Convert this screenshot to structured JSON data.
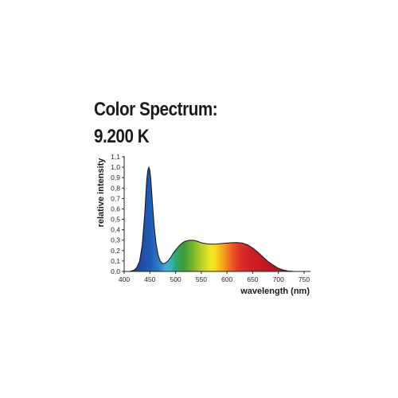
{
  "title": "Color Spectrum:",
  "subtitle": "9.200 K",
  "chart_data": {
    "type": "area",
    "xlabel": "wavelength  (nm)",
    "ylabel": "relative intensity",
    "xlim": [
      400,
      750
    ],
    "ylim": [
      0,
      1.1
    ],
    "x_ticks": [
      "400",
      "450",
      "500",
      "550",
      "600",
      "650",
      "700",
      "750"
    ],
    "y_ticks": [
      "0,0",
      "0,1",
      "0,2",
      "0,3",
      "0,4",
      "0,5",
      "0,6",
      "0,7",
      "0,8",
      "0,9",
      "1,0",
      "1,1"
    ],
    "grid": false,
    "fill": "visible spectrum gradient",
    "series": [
      {
        "x": [
          410,
          415,
          420,
          425,
          430,
          435,
          440,
          442,
          444,
          446,
          448,
          450,
          452,
          455,
          458,
          462,
          466,
          470,
          475,
          480,
          485,
          490,
          495,
          500,
          505,
          510,
          515,
          520,
          525,
          530,
          535,
          540,
          545,
          550,
          560,
          570,
          580,
          590,
          600,
          610,
          620,
          630,
          640,
          650,
          660,
          670,
          680,
          690,
          700,
          710,
          720,
          730,
          735
        ],
        "y": [
          0.0,
          0.005,
          0.015,
          0.04,
          0.1,
          0.25,
          0.55,
          0.72,
          0.88,
          0.97,
          1.0,
          0.97,
          0.87,
          0.66,
          0.45,
          0.27,
          0.16,
          0.1,
          0.075,
          0.08,
          0.1,
          0.13,
          0.17,
          0.205,
          0.235,
          0.26,
          0.28,
          0.292,
          0.298,
          0.3,
          0.298,
          0.293,
          0.285,
          0.275,
          0.265,
          0.262,
          0.263,
          0.268,
          0.272,
          0.276,
          0.277,
          0.272,
          0.255,
          0.225,
          0.185,
          0.14,
          0.095,
          0.06,
          0.03,
          0.012,
          0.004,
          0.001,
          0.0
        ]
      }
    ]
  }
}
